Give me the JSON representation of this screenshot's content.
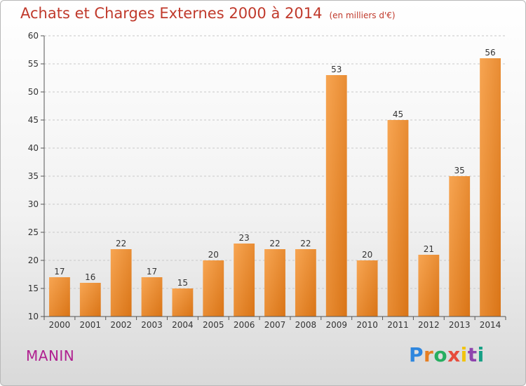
{
  "title": "Achats et Charges Externes 2000 à 2014",
  "unit": "(en milliers d'€)",
  "town": "MANIN",
  "logo": "Proxiti",
  "colors": {
    "bar_light": "#f7a552",
    "bar_dark": "#d97416",
    "title": "#c0392b",
    "town": "#b02090"
  },
  "chart_data": {
    "type": "bar",
    "title": "Achats et Charges Externes 2000 à 2014",
    "categories": [
      "2000",
      "2001",
      "2002",
      "2003",
      "2004",
      "2005",
      "2006",
      "2007",
      "2008",
      "2009",
      "2010",
      "2011",
      "2012",
      "2013",
      "2014"
    ],
    "values": [
      17,
      16,
      22,
      17,
      15,
      20,
      23,
      22,
      22,
      53,
      20,
      45,
      21,
      35,
      56
    ],
    "ylim": [
      10,
      60
    ],
    "yticks": [
      10,
      15,
      20,
      25,
      30,
      35,
      40,
      45,
      50,
      55,
      60
    ],
    "grid": "horizontal dashed",
    "xlabel": "",
    "ylabel": ""
  }
}
